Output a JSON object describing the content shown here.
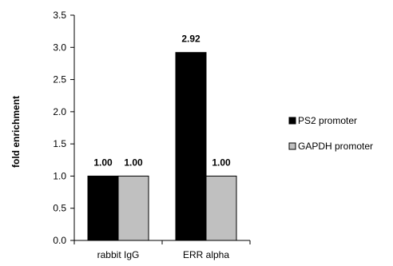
{
  "chart_data": {
    "type": "bar",
    "categories": [
      "rabbit IgG",
      "ERR alpha"
    ],
    "series": [
      {
        "name": "PS2 promoter",
        "values": [
          1.0,
          2.92
        ],
        "color": "#000000"
      },
      {
        "name": "GAPDH promoter",
        "values": [
          1.0,
          1.0
        ],
        "color": "#c0c0c0"
      }
    ],
    "data_labels": [
      [
        "1.00",
        "2.92"
      ],
      [
        "1.00",
        "1.00"
      ]
    ],
    "title": "",
    "xlabel": "",
    "ylabel": "fold enrichment",
    "ylim": [
      0,
      3.5
    ],
    "yticks": [
      0.0,
      0.5,
      1.0,
      1.5,
      2.0,
      2.5,
      3.0,
      3.5
    ],
    "ytick_labels": [
      "0.0",
      "0.5",
      "1.0",
      "1.5",
      "2.0",
      "2.5",
      "3.0",
      "3.5"
    ],
    "grid": false,
    "legend_position": "right"
  }
}
